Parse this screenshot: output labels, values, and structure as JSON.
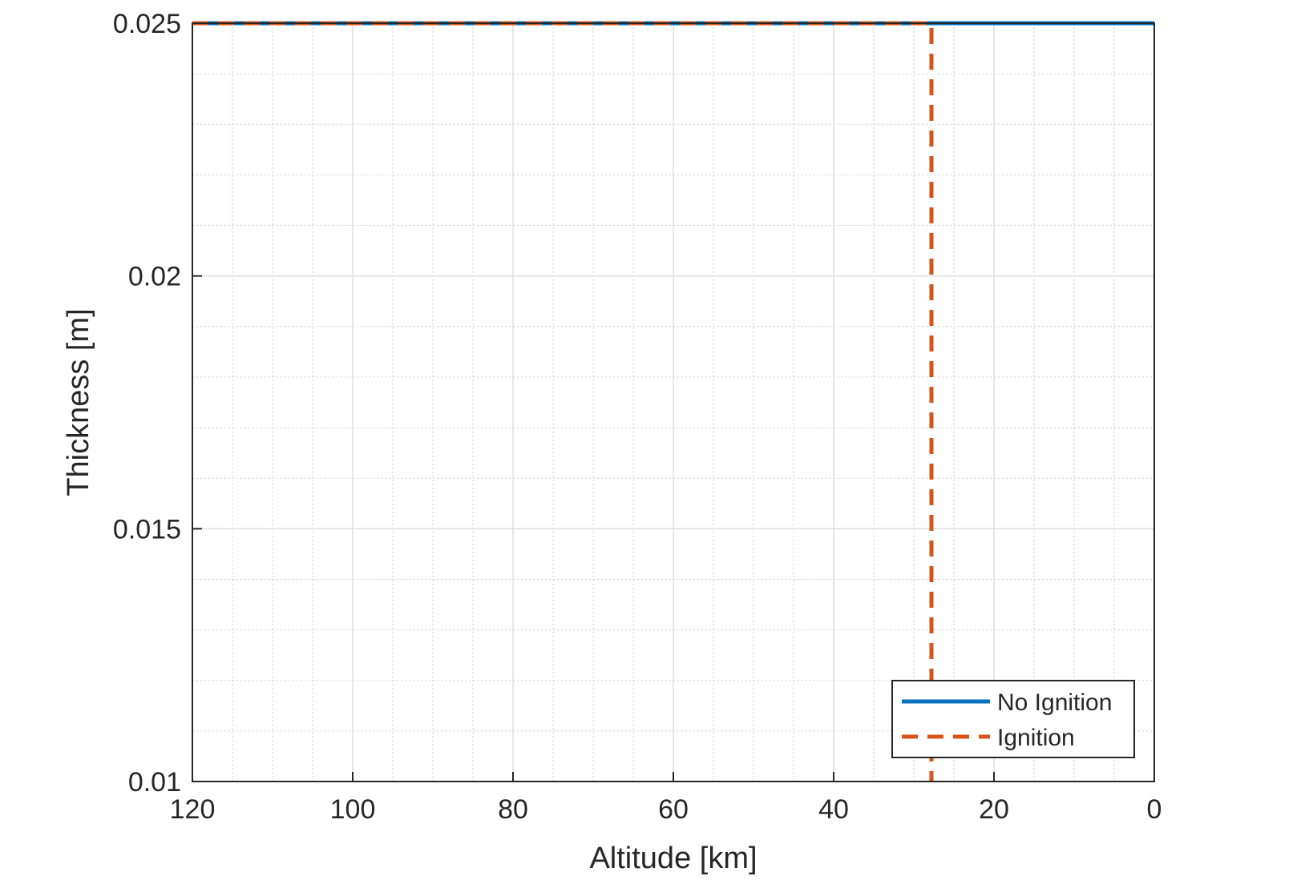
{
  "chart_data": {
    "type": "line",
    "title": "",
    "xlabel": "Altitude [km]",
    "ylabel": "Thickness [m]",
    "xlim": [
      120,
      0
    ],
    "ylim": [
      0.01,
      0.025
    ],
    "x_reversed": true,
    "xticks": [
      120,
      100,
      80,
      60,
      40,
      20,
      0
    ],
    "xtick_labels": [
      "120",
      "100",
      "80",
      "60",
      "40",
      "20",
      "0"
    ],
    "yticks": [
      0.01,
      0.015,
      0.02,
      0.025
    ],
    "ytick_labels": [
      "0.01",
      "0.015",
      "0.02",
      "0.025"
    ],
    "x_minor_step": 5,
    "y_minor_step": 0.001,
    "grid": "major and minor",
    "legend_position": "bottom-right",
    "series": [
      {
        "name": "No Ignition",
        "color": "#0072BD",
        "style": "solid",
        "x": [
          120,
          0
        ],
        "y": [
          0.025,
          0.025
        ]
      },
      {
        "name": "Ignition",
        "color": "#D95319",
        "style": "dashed",
        "x": [
          120,
          27.8,
          27.8
        ],
        "y": [
          0.025,
          0.025,
          0.01
        ]
      }
    ]
  }
}
